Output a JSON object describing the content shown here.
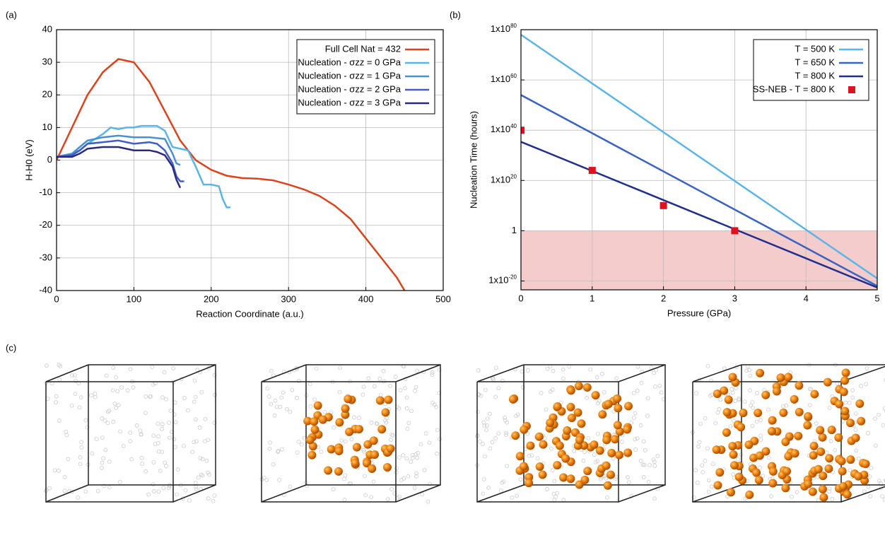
{
  "chart_data": [
    {
      "type": "line",
      "panel_label": "(a)",
      "xlabel": "Reaction Coordinate (a.u.)",
      "ylabel": "H-H0 (eV)",
      "xlim": [
        0,
        500
      ],
      "xticks": [
        0,
        100,
        200,
        300,
        400,
        500
      ],
      "ylim": [
        -40,
        40
      ],
      "yticks": [
        -40,
        -30,
        -20,
        -10,
        0,
        10,
        20,
        30,
        40
      ],
      "grid": true,
      "legend": "upper right",
      "series": [
        {
          "name": "Full Cell Nat = 432",
          "color": "#d9441c",
          "x": [
            0,
            20,
            40,
            60,
            80,
            100,
            120,
            140,
            160,
            180,
            200,
            220,
            240,
            260,
            280,
            300,
            320,
            340,
            360,
            380,
            400,
            420,
            440,
            450
          ],
          "values": [
            0,
            10,
            20,
            27,
            31,
            30,
            24,
            15,
            6,
            0,
            -3,
            -4.8,
            -5.5,
            -5.7,
            -6.2,
            -7.5,
            -9,
            -11,
            -14,
            -18,
            -24,
            -30,
            -36,
            -40
          ]
        },
        {
          "name": "Nucleation - σzz = 0 GPa",
          "color": "#5ab4e8",
          "x": [
            0,
            20,
            30,
            40,
            50,
            60,
            70,
            80,
            90,
            100,
            110,
            120,
            130,
            140,
            150,
            160,
            170,
            180,
            190,
            200,
            210,
            215,
            220,
            225
          ],
          "values": [
            1,
            2,
            3,
            5,
            6.5,
            8,
            10,
            9.5,
            10,
            10,
            10.5,
            10.5,
            10.5,
            9,
            4,
            3.5,
            3,
            -2,
            -7.5,
            -7.5,
            -8,
            -12,
            -14.5,
            -14.5
          ]
        },
        {
          "name": "Nucleation - σzz = 1 GPa",
          "color": "#4a90d0",
          "x": [
            0,
            20,
            30,
            40,
            60,
            80,
            100,
            120,
            140,
            150,
            155,
            160
          ],
          "values": [
            1,
            2,
            4,
            6,
            7,
            7.5,
            7,
            7,
            6.5,
            2,
            -1,
            -1.5
          ]
        },
        {
          "name": "Nucleation - σzz = 2 GPa",
          "color": "#3f5ec8",
          "x": [
            0,
            20,
            30,
            40,
            60,
            80,
            100,
            120,
            130,
            140,
            150,
            155,
            160,
            165
          ],
          "values": [
            1,
            1.5,
            3,
            5,
            5.5,
            6,
            5,
            5.5,
            5,
            3,
            -1,
            -5,
            -6.5,
            -6.5
          ]
        },
        {
          "name": "Nucleation - σzz = 3 GPa",
          "color": "#2d2a7a",
          "x": [
            0,
            20,
            30,
            40,
            60,
            80,
            100,
            120,
            130,
            140,
            150,
            155,
            160
          ],
          "values": [
            1,
            1,
            2,
            3.5,
            4,
            4,
            3,
            3,
            2.5,
            1.5,
            -2,
            -6,
            -8.5
          ]
        }
      ]
    },
    {
      "type": "line",
      "panel_label": "(b)",
      "xlabel": "Pressure (GPa)",
      "ylabel": "Nucleation Time (hours)",
      "xlim": [
        0,
        5
      ],
      "xticks": [
        0,
        1,
        2,
        3,
        4,
        5
      ],
      "ylim": [
        3e-24,
        1e+80
      ],
      "log_y": true,
      "yticks": [
        {
          "value": 1e-20,
          "label": "1x10^-20"
        },
        1,
        {
          "value": 1e+20,
          "label": "1x10^20"
        },
        {
          "value": 1e+40,
          "label": "1x10^40"
        },
        {
          "value": 1e+60,
          "label": "1x10^60"
        },
        {
          "value": 1e+80,
          "label": "1x10^80"
        }
      ],
      "grid": true,
      "legend": "upper right",
      "shade_below": 1,
      "shade_color": "#f5cccc",
      "series": [
        {
          "name": "T = 500 K",
          "color": "#5ab4e8",
          "x": [
            0,
            5
          ],
          "values": [
            1e+78,
            1e-19
          ]
        },
        {
          "name": "T = 650 K",
          "color": "#3a62c0",
          "x": [
            0,
            5
          ],
          "values": [
            1e+54,
            1e-22
          ]
        },
        {
          "name": "T = 800 K",
          "color": "#1f2f8c",
          "x": [
            0,
            5
          ],
          "values": [
            2.5e+35,
            2.5e-23
          ]
        },
        {
          "name": "SS-NEB - T = 800 K",
          "color": "#e0101e",
          "marker": "square",
          "x": [
            0,
            1,
            2,
            3
          ],
          "values": [
            1e+40,
            1e+24,
            10000000000.0,
            1
          ]
        }
      ]
    },
    {
      "type": "image-panel",
      "panel_label": "(c)"
    }
  ]
}
